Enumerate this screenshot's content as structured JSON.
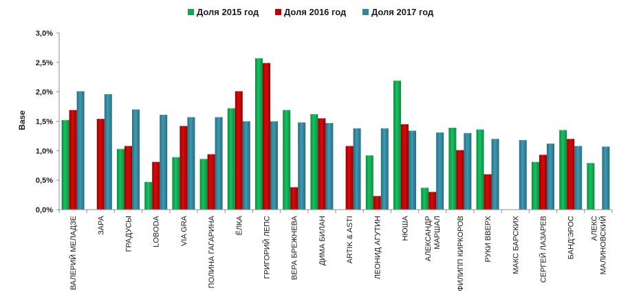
{
  "chart_data": {
    "type": "bar",
    "title": "",
    "xlabel": "",
    "ylabel": "Base",
    "ylim": [
      0,
      0.03
    ],
    "yticks": [
      "0,0%",
      "0,5%",
      "1,0%",
      "1,5%",
      "2,0%",
      "2,5%",
      "3,0%"
    ],
    "grid": false,
    "legend_position": "top",
    "categories": [
      [
        "ВАЛЕРИЙ МЕЛАДЗЕ"
      ],
      [
        "ЗАРА"
      ],
      [
        "ГРАДУСЫ"
      ],
      [
        "LOBODA"
      ],
      [
        "VIA GRA"
      ],
      [
        "ПОЛИНА ГАГАРИНА"
      ],
      [
        "ЁЛКА"
      ],
      [
        "ГРИГОРИЙ ЛЕПС"
      ],
      [
        "ВЕРА БРЕЖНЕВА"
      ],
      [
        "ДИМА БИЛАН"
      ],
      [
        "ARTIK & ASTI"
      ],
      [
        "ЛЕОНИД АГУТИН"
      ],
      [
        "НЮША"
      ],
      [
        "АЛЕКСАНДР",
        "МАРШАЛ"
      ],
      [
        "ФИЛИПП КИРКОРОВ"
      ],
      [
        "РУКИ ВВЕРХ"
      ],
      [
        "МАКС БАРСКИХ"
      ],
      [
        "СЕРГЕЙ ЛАЗАРЕВ"
      ],
      [
        "БАНД'ЭРОС"
      ],
      [
        "АЛЕКС",
        "МАЛИНОВСКИЙ"
      ]
    ],
    "series": [
      {
        "name": "Доля 2015 год",
        "color": "#12a851",
        "values": [
          0.0152,
          null,
          0.0103,
          0.0047,
          0.0089,
          0.0086,
          0.0172,
          0.0257,
          0.0169,
          0.0162,
          null,
          0.0092,
          0.0219,
          0.0037,
          0.0139,
          0.0136,
          null,
          0.0081,
          0.0135,
          0.0079
        ]
      },
      {
        "name": "Доля 2016 год",
        "color": "#c00000",
        "values": [
          0.0169,
          0.0154,
          0.0108,
          0.0081,
          0.0142,
          0.0094,
          0.0201,
          0.0249,
          0.0038,
          0.0155,
          0.0108,
          0.0023,
          0.0145,
          0.003,
          0.0101,
          0.006,
          null,
          0.0093,
          0.012,
          null
        ]
      },
      {
        "name": "Доля 2017 год",
        "color": "#31859b",
        "values": [
          0.0201,
          0.0196,
          0.017,
          0.0161,
          0.0157,
          0.0157,
          0.015,
          0.015,
          0.0148,
          0.0147,
          0.0138,
          0.0138,
          0.0134,
          0.0131,
          0.013,
          0.012,
          0.0118,
          0.0112,
          0.0108,
          0.0107
        ]
      }
    ]
  }
}
